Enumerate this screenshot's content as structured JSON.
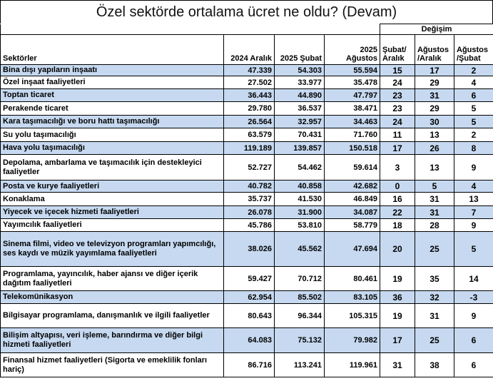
{
  "header": {
    "title": "Özel sektörde ortalama ücret ne oldu? (Devam)"
  },
  "table": {
    "group_header": "Değişim",
    "columns": [
      "Sektörler",
      "2024 Aralık",
      "2025 Şubat",
      "2025 Ağustos",
      "Şubat/ Aralık",
      "Ağustos /Aralık",
      "Ağustos /Şubat"
    ],
    "rows": [
      [
        "Bina dışı yapıların inşaatı",
        "47.339",
        "54.303",
        "55.594",
        "15",
        "17",
        "2"
      ],
      [
        "Özel inşaat faaliyetleri",
        "27.502",
        "33.977",
        "35.478",
        "24",
        "29",
        "4"
      ],
      [
        "Toptan ticaret",
        "36.443",
        "44.890",
        "47.797",
        "23",
        "31",
        "6"
      ],
      [
        "Perakende ticaret",
        "29.780",
        "36.537",
        "38.471",
        "23",
        "29",
        "5"
      ],
      [
        "Kara taşımacılığı ve boru hattı taşımacılığı",
        "26.564",
        "32.957",
        "34.463",
        "24",
        "30",
        "5"
      ],
      [
        "Su yolu taşımacılığı",
        "63.579",
        "70.431",
        "71.760",
        "11",
        "13",
        "2"
      ],
      [
        "Hava yolu taşımacılığı",
        "119.189",
        "139.857",
        "150.518",
        "17",
        "26",
        "8"
      ],
      [
        "Depolama, ambarlama ve taşımacılık için destekleyici faaliyetler",
        "52.727",
        "54.462",
        "59.614",
        "3",
        "13",
        "9"
      ],
      [
        "Posta ve kurye faaliyetleri",
        "40.782",
        "40.858",
        "42.682",
        "0",
        "5",
        "4"
      ],
      [
        "Konaklama",
        "35.737",
        "41.530",
        "46.849",
        "16",
        "31",
        "13"
      ],
      [
        "Yiyecek ve içecek hizmeti faaliyetleri",
        "26.078",
        "31.900",
        "34.087",
        "22",
        "31",
        "7"
      ],
      [
        "Yayımcılık faaliyetleri",
        "45.786",
        "53.810",
        "58.779",
        "18",
        "28",
        "9"
      ],
      [
        "Sinema filmi, video ve televizyon programları yapımcılığı, ses kaydı ve müzik yayımlama faaliyetleri",
        "38.026",
        "45.562",
        "47.694",
        "20",
        "25",
        "5"
      ],
      [
        "Programlama, yayıncılık, haber ajansı ve diğer içerik dağıtım faaliyetleri",
        "59.427",
        "70.712",
        "80.461",
        "19",
        "35",
        "14"
      ],
      [
        "Telekomünikasyon",
        "62.954",
        "85.502",
        "83.105",
        "36",
        "32",
        "-3"
      ],
      [
        "Bilgisayar programlama, danışmanlık ve ilgili faaliyetler",
        "80.643",
        "96.344",
        "105.315",
        "19",
        "31",
        "9"
      ],
      [
        "Bilişim altyapısı, veri işleme, barındırma ve diğer bilgi hizmeti faaliyetleri",
        "64.083",
        "75.132",
        "79.982",
        "17",
        "25",
        "6"
      ],
      [
        "Finansal hizmet faaliyetleri (Sigorta ve emeklilik fonları hariç)",
        "86.716",
        "113.241",
        "119.961",
        "31",
        "38",
        "6"
      ]
    ]
  }
}
